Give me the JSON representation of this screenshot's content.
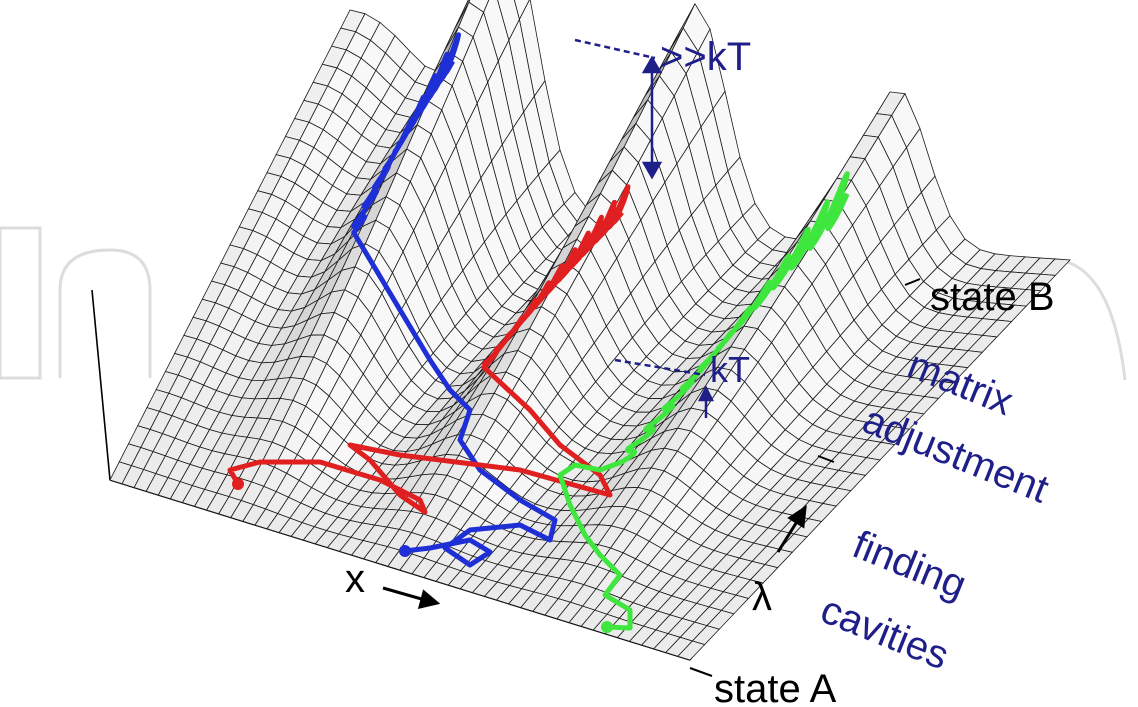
{
  "watermark": {
    "letters": "In",
    "color": "#d9d9d9"
  },
  "labels": {
    "state_a": "state A",
    "state_b": "state B",
    "x_axis": "x",
    "lambda_axis": "λ",
    "barrier_high": ">>kT",
    "barrier_low": "kT",
    "stage_upper_line1": "matrix",
    "stage_upper_line2": "adjustment",
    "stage_lower_line1": "finding",
    "stage_lower_line2": "cavities"
  },
  "trajectories": [
    {
      "name": "blue",
      "color": "#1f2fd6"
    },
    {
      "name": "red",
      "color": "#e02020"
    },
    {
      "name": "green",
      "color": "#3ee63e"
    }
  ],
  "colors": {
    "mesh_line": "#1a1a1a",
    "surface_light": "#f4f4f4",
    "surface_dark": "#a8a8a8",
    "annotation": "#1f1f8a",
    "text": "#000000"
  }
}
